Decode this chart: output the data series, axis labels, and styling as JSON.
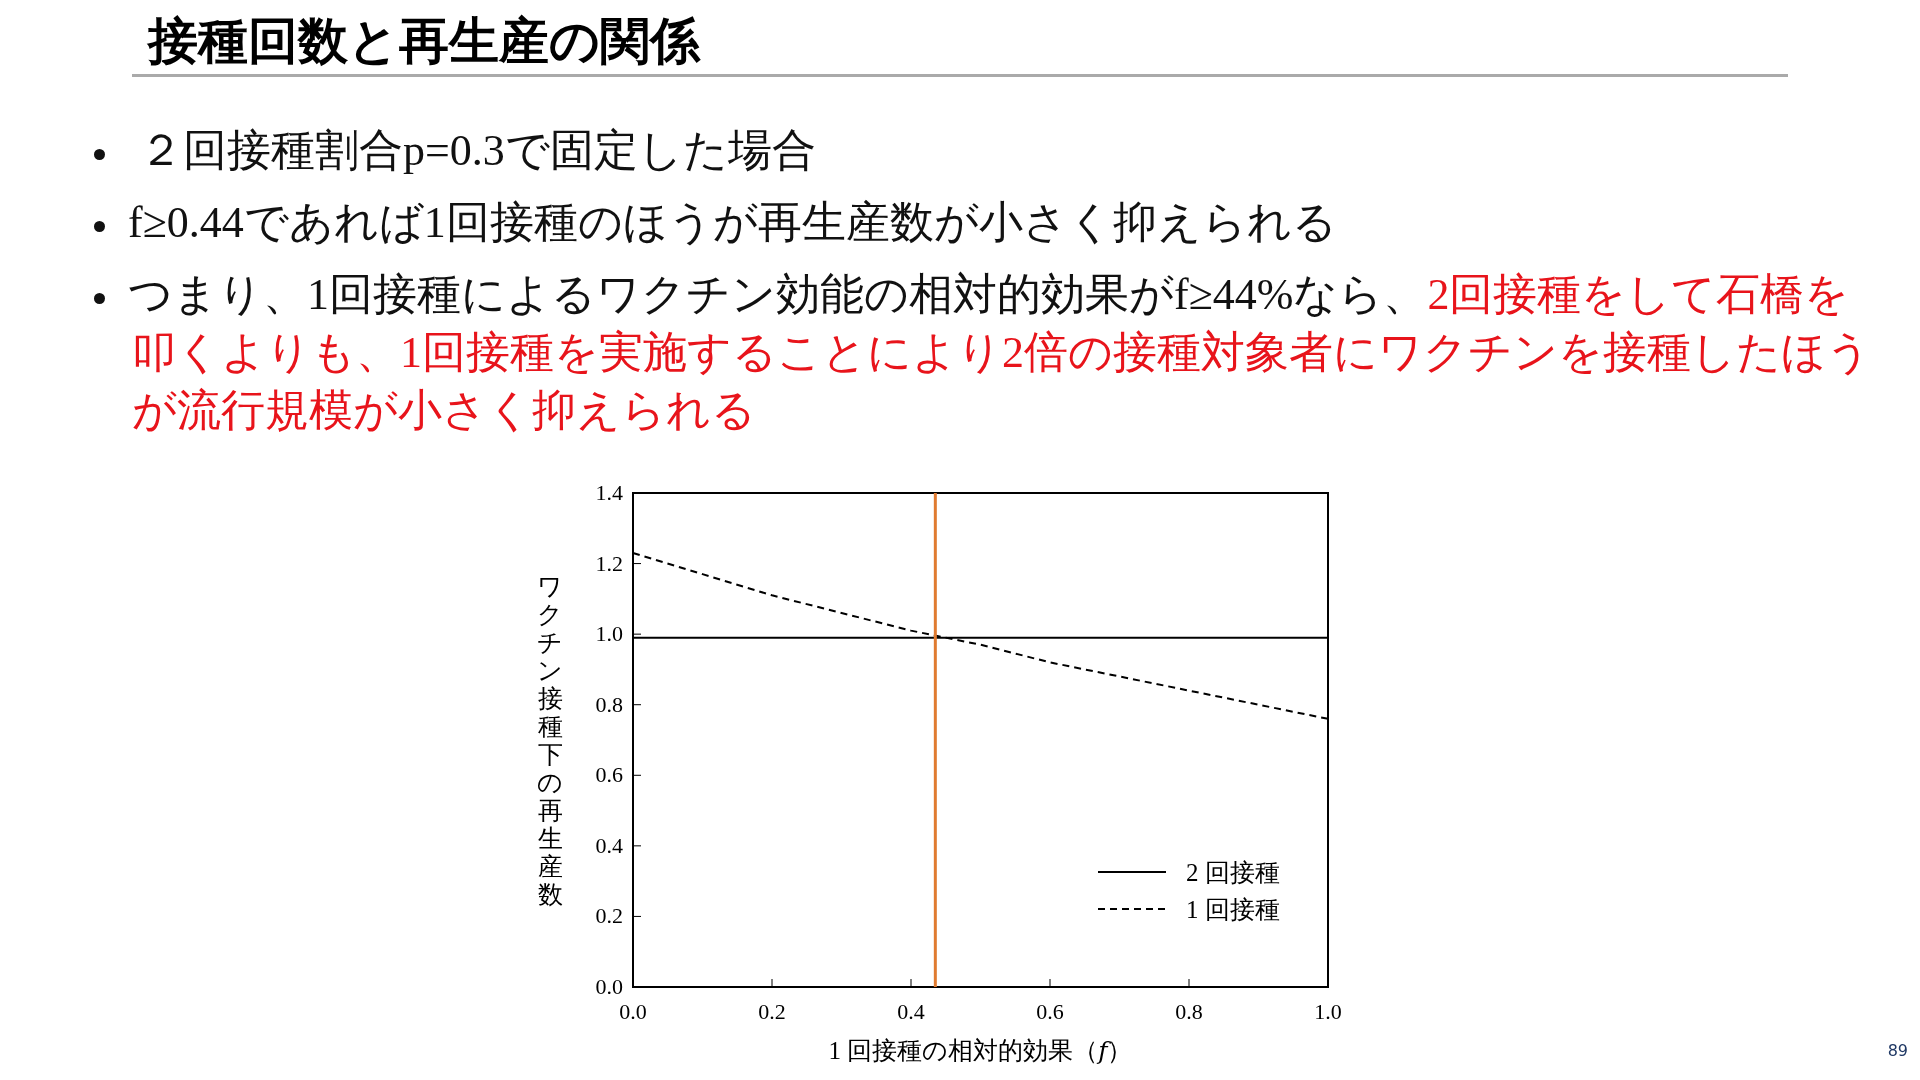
{
  "chart_data": {
    "type": "line",
    "title": "接種回数と再生産の関係",
    "annotations": [
      "２回接種割合p=0.3で固定した場合",
      "f≥0.44であれば1回接種のほうが再生産数が小さく抑えられる",
      "つまり、1回接種によるワクチン効能の相対的効果がf≥44%なら、",
      "2回接種をして石橋を叩くよりも、1回接種を実施することにより2倍の接種対象者にワクチンを接種したほうが流行規模が小さく抑えられる",
      "89"
    ],
    "xlabel": "1 回接種の相対的効果（𝑓）",
    "ylabel": "ワクチン接種下の再生産数",
    "series": [
      {
        "name": "2 回接種",
        "color": "#000000",
        "line_style": "solid",
        "x": [
          0,
          1
        ],
        "values": [
          0.99,
          0.99
        ]
      },
      {
        "name": "1 回接種",
        "color": "#000000",
        "line_style": "dashed",
        "x": [
          0,
          0.1,
          0.2,
          0.3,
          0.4,
          0.5,
          0.6,
          0.7,
          0.8,
          0.9,
          1.0
        ],
        "values": [
          1.23,
          1.17,
          1.11,
          1.06,
          1.01,
          0.97,
          0.92,
          0.88,
          0.84,
          0.8,
          0.76
        ]
      }
    ],
    "xlim": [
      0,
      1
    ],
    "xticks": [
      {
        "value": 0,
        "label": "0.0"
      },
      0.2,
      0.4,
      0.6,
      0.8,
      {
        "value": 1,
        "label": "1.0"
      }
    ],
    "ylim": [
      0,
      1.4
    ],
    "yticks": [
      {
        "value": 0,
        "label": "0.0"
      },
      0.2,
      0.4,
      0.6,
      0.8,
      {
        "value": 1,
        "label": "1.0"
      },
      1.2,
      1.4
    ],
    "ref_lines": [
      {
        "axis": "x",
        "value": 0.435,
        "color": "#e07b30"
      }
    ],
    "legend": "bottom right",
    "marker": "none"
  }
}
